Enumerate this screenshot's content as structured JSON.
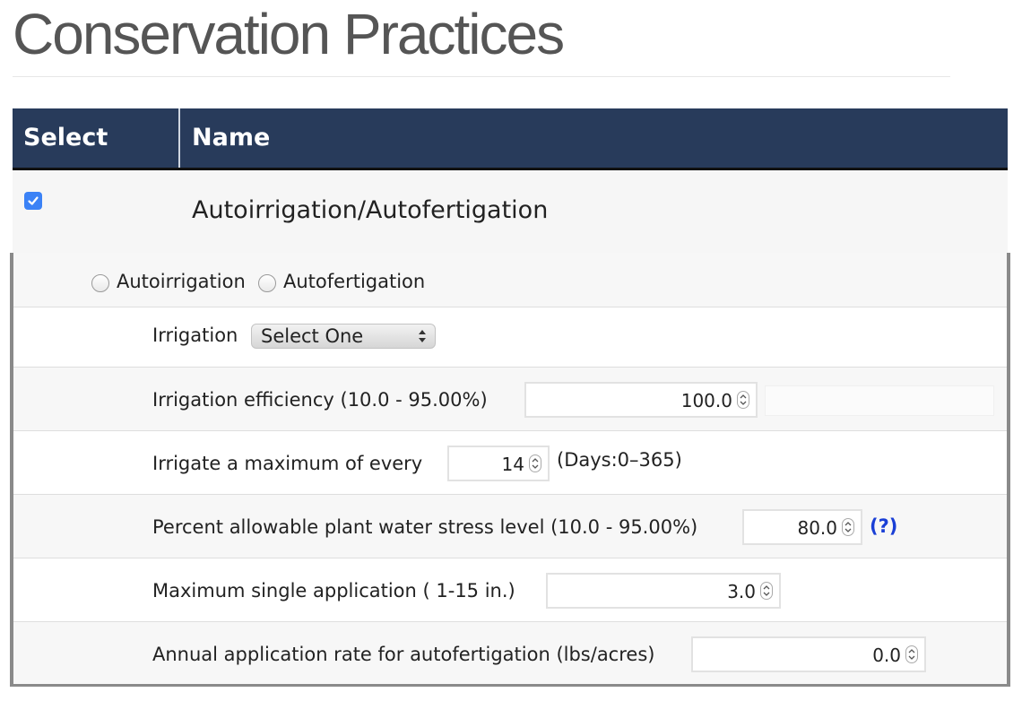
{
  "page": {
    "title": "Conservation Practices"
  },
  "table": {
    "headers": {
      "select": "Select",
      "name": "Name"
    },
    "practice": {
      "name": "Autoirrigation/Autofertigation",
      "checked": true
    }
  },
  "options": {
    "radio_autoirrigation": "Autoirrigation",
    "radio_autofertigation": "Autofertigation",
    "irrigation_label": "Irrigation",
    "irrigation_select": "Select One",
    "efficiency_label": "Irrigation efficiency (10.0 - 95.00%)",
    "efficiency_value": "100.0",
    "max_every_label": "Irrigate a maximum of every",
    "max_every_value": "14",
    "max_every_units": "(Days:0–365)",
    "stress_label": "Percent allowable plant water stress level (10.0 - 95.00%)",
    "stress_value": "80.0",
    "stress_help": "(?)",
    "single_app_label": "Maximum single application ( 1-15 in.)",
    "single_app_value": "3.0",
    "annual_rate_label": "Annual application rate for autofertigation (lbs/acres)",
    "annual_rate_value": "0.0"
  },
  "icons": {
    "checkbox": "checkmark-icon",
    "select": "updown-arrows-icon",
    "spinner": "spinner-arrows-icon"
  },
  "colors": {
    "header_bg": "#283b5b",
    "checkbox": "#3b82f6",
    "help_link": "#1a3fd6"
  }
}
